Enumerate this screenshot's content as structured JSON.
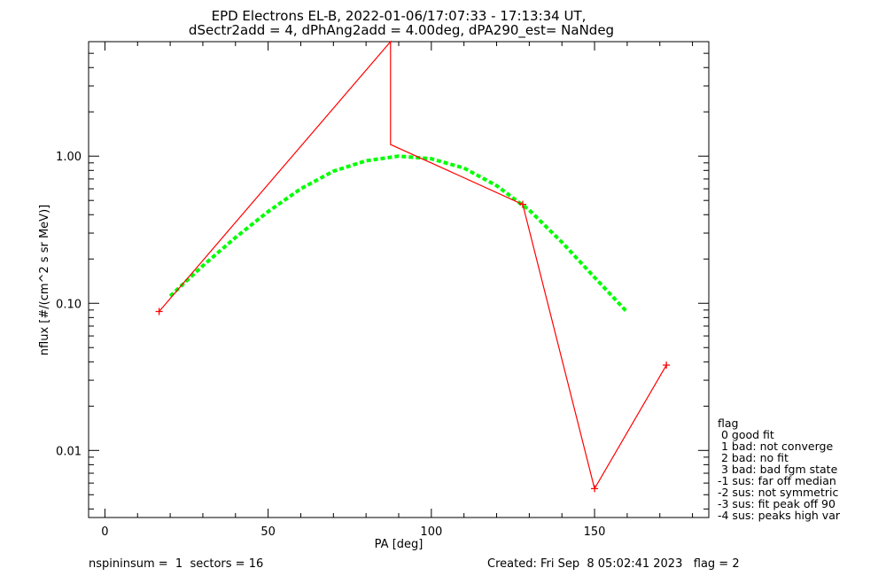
{
  "title_line1": "EPD Electrons EL-B, 2022-01-06/17:07:33 - 17:13:34 UT,",
  "title_line2": "dSectr2add = 4, dPhAng2add = 4.00deg, dPA290_est=    NaNdeg",
  "footer_left": "nspininsum =  1  sectors = 16",
  "footer_right": "Created: Fri Sep  8 05:02:41 2023   flag = 2",
  "legend": {
    "title": "flag",
    "items": [
      " 0 good fit",
      " 1 bad: not converge",
      " 2 bad: no fit",
      " 3 bad: bad fgm state",
      "-1 sus: far off median",
      "-2 sus: not symmetric",
      "-3 sus: fit peak off 90",
      "-4 sus: peaks high var"
    ]
  },
  "colors": {
    "data": "#ff0000",
    "fit": "#00ff00",
    "axes": "#000000"
  },
  "chart_data": {
    "type": "line",
    "xlabel": "PA [deg]",
    "ylabel": "nflux [#/(cm^2 s sr MeV)]",
    "xlim": [
      -5,
      185
    ],
    "ylim": [
      0.0035,
      6.0
    ],
    "yscale": "log",
    "xticks": [
      0,
      50,
      100,
      150
    ],
    "xtick_labels": [
      "0",
      "50",
      "100",
      "150"
    ],
    "yticks": [
      0.01,
      0.1,
      1.0
    ],
    "ytick_labels": [
      "0.01",
      "0.10",
      "1.00"
    ],
    "series": [
      {
        "style": "red-line-plus-markers",
        "x": [
          16.6,
          87.5,
          87.5,
          128,
          150,
          172
        ],
        "y": [
          0.088,
          6.0,
          1.2,
          0.47,
          0.0055,
          0.038
        ]
      },
      {
        "style": "green-dashed-fit",
        "x": [
          20,
          30,
          40,
          50,
          60,
          70,
          80,
          90,
          100,
          110,
          120,
          130,
          140,
          150,
          160
        ],
        "y": [
          0.112,
          0.18,
          0.28,
          0.42,
          0.6,
          0.79,
          0.93,
          1.0,
          0.96,
          0.83,
          0.63,
          0.43,
          0.26,
          0.15,
          0.087
        ]
      }
    ],
    "grid": false
  }
}
